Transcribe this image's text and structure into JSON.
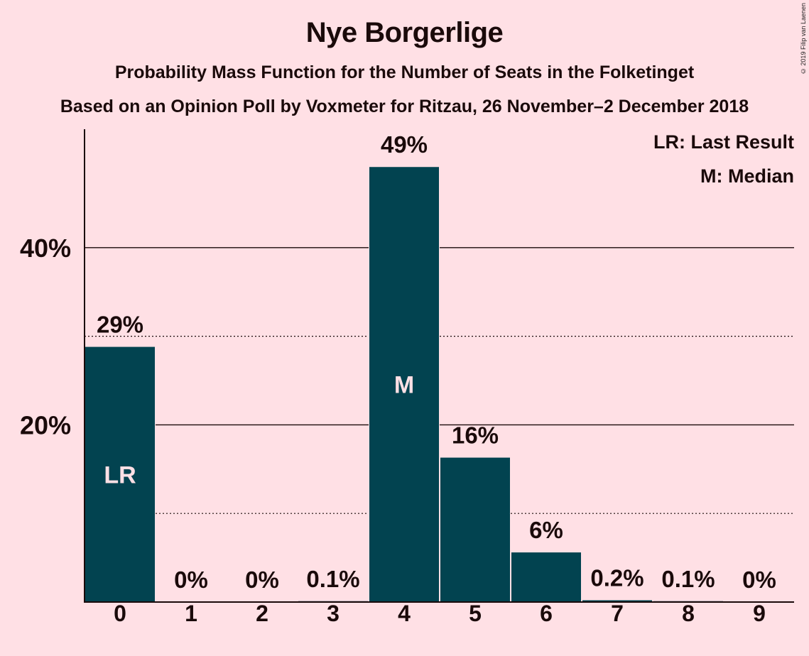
{
  "header": {
    "title": "Nye Borgerlige",
    "subtitle": "Probability Mass Function for the Number of Seats in the Folketinget",
    "subtitle2": "Based on an Opinion Poll by Voxmeter for Ritzau, 26 November–2 December 2018",
    "copyright": "© 2019 Filip van Laenen"
  },
  "legend": {
    "lr": "LR: Last Result",
    "m": "M: Median"
  },
  "colors": {
    "background": "#FFE0E5",
    "bar": "#024350",
    "text": "#1a0a0a"
  },
  "chart_data": {
    "type": "bar",
    "categories": [
      "0",
      "1",
      "2",
      "3",
      "4",
      "5",
      "6",
      "7",
      "8",
      "9"
    ],
    "values": [
      29,
      0,
      0,
      0.1,
      49,
      16,
      6,
      0.2,
      0.1,
      0
    ],
    "value_labels": [
      "29%",
      "0%",
      "0%",
      "0.1%",
      "49%",
      "16%",
      "6%",
      "0.2%",
      "0.1%",
      "0%"
    ],
    "bar_heights": [
      28.8,
      0,
      0,
      0.1,
      49.1,
      16.3,
      5.6,
      0.2,
      0.1,
      0
    ],
    "inner_labels": {
      "0": "LR",
      "4": "M"
    },
    "y_ticks": [
      20,
      40
    ],
    "y_tick_labels": [
      "20%",
      "40%"
    ],
    "y_dotted_lines": [
      10,
      30
    ],
    "ylim": [
      0,
      53.2
    ],
    "grid": true,
    "legend_position": "top-right",
    "last_result": 0,
    "median": 4
  }
}
